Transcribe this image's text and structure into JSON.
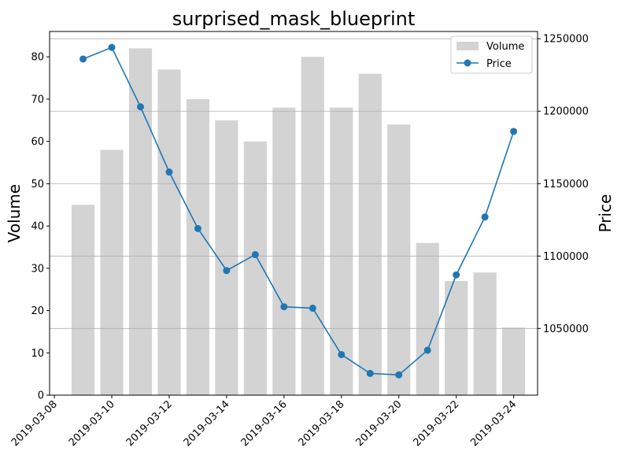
{
  "chart_data": {
    "type": "bar+line",
    "title": "surprised_mask_blueprint",
    "ylabel_left": "Volume",
    "ylabel_right": "Price",
    "xlabel": "",
    "x_dates": [
      "2019-03-09",
      "2019-03-10",
      "2019-03-11",
      "2019-03-12",
      "2019-03-13",
      "2019-03-14",
      "2019-03-15",
      "2019-03-16",
      "2019-03-17",
      "2019-03-18",
      "2019-03-19",
      "2019-03-20",
      "2019-03-21",
      "2019-03-22",
      "2019-03-23",
      "2019-03-24"
    ],
    "x_ticks": [
      "2019-03-08",
      "2019-03-10",
      "2019-03-12",
      "2019-03-14",
      "2019-03-16",
      "2019-03-18",
      "2019-03-20",
      "2019-03-22",
      "2019-03-24"
    ],
    "xlim": [
      "2019-03-07T20:00",
      "2019-03-24T20:00"
    ],
    "y_left_ticks": [
      0,
      10,
      20,
      30,
      40,
      50,
      60,
      70,
      80
    ],
    "y_left_lim": [
      0,
      86
    ],
    "y_right_ticks": [
      1050000,
      1100000,
      1150000,
      1200000,
      1250000
    ],
    "y_right_lim": [
      1004000,
      1255000
    ],
    "grid": "horizontal, right axis",
    "legend_position": "top-right",
    "series": [
      {
        "name": "Volume",
        "type": "bar",
        "color": "#d3d3d3",
        "axis": "left",
        "values": [
          45,
          58,
          82,
          77,
          70,
          65,
          60,
          68,
          80,
          68,
          76,
          64,
          36,
          27,
          29,
          16
        ]
      },
      {
        "name": "Price",
        "type": "line",
        "color": "#1f77b4",
        "axis": "right",
        "marker": "circle",
        "values": [
          1236000,
          1244000,
          1203000,
          1158000,
          1119000,
          1090000,
          1101000,
          1065000,
          1064000,
          1032000,
          1019000,
          1018000,
          1035000,
          1087000,
          1127000,
          1186000
        ]
      }
    ]
  }
}
